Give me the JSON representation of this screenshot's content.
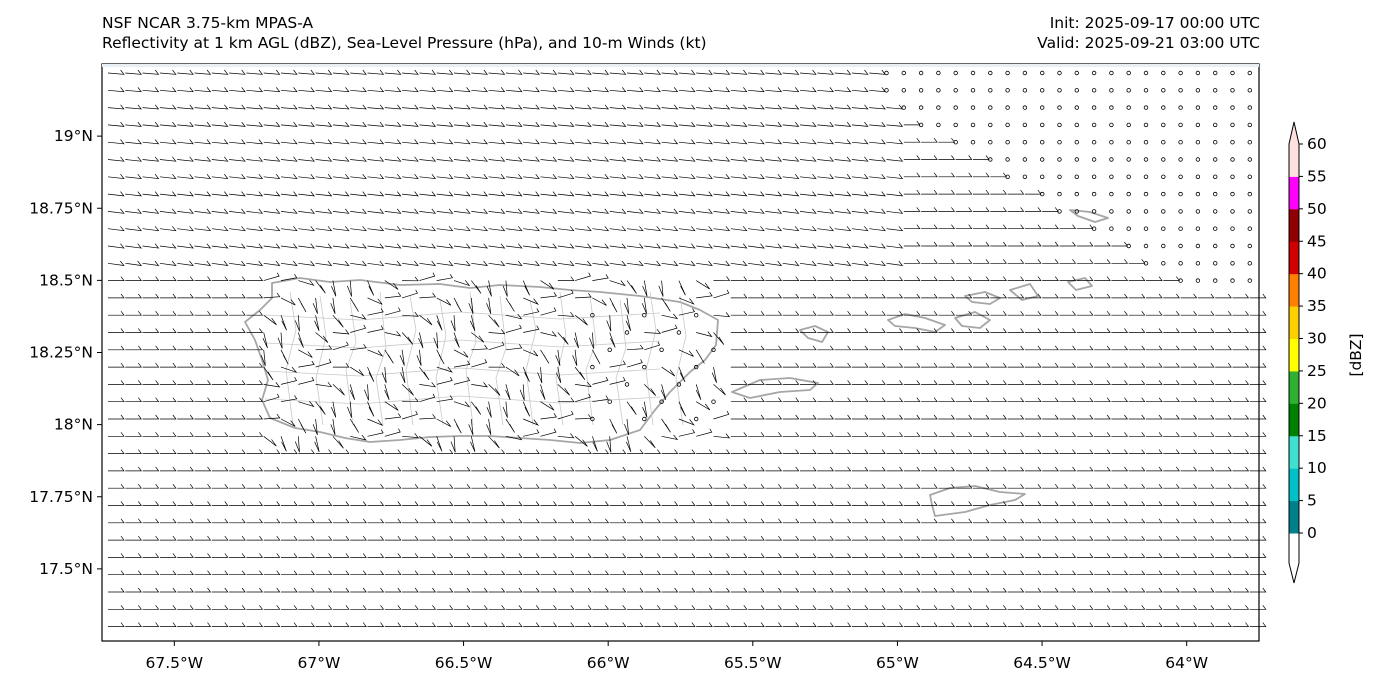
{
  "header": {
    "model": "NSF NCAR 3.75-km MPAS-A",
    "fields": "Reflectivity at 1 km AGL (dBZ), Sea-Level Pressure (hPa), and 10-m Winds (kt)",
    "init": "Init: 2025-09-17 00:00 UTC",
    "valid": "Valid: 2025-09-21 03:00 UTC"
  },
  "map": {
    "lon_range": [
      -67.75,
      -63.75
    ],
    "lat_range": [
      17.25,
      19.25
    ],
    "lon_ticks": [
      {
        "value": -67.5,
        "label": "67.5°W"
      },
      {
        "value": -67.0,
        "label": "67°W"
      },
      {
        "value": -66.5,
        "label": "66.5°W"
      },
      {
        "value": -66.0,
        "label": "66°W"
      },
      {
        "value": -65.5,
        "label": "65.5°W"
      },
      {
        "value": -65.0,
        "label": "65°W"
      },
      {
        "value": -64.5,
        "label": "64.5°W"
      },
      {
        "value": -64.0,
        "label": "64°W"
      }
    ],
    "lat_ticks": [
      {
        "value": 19.0,
        "label": "19°N"
      },
      {
        "value": 18.75,
        "label": "18.75°N"
      },
      {
        "value": 18.5,
        "label": "18.5°N"
      },
      {
        "value": 18.25,
        "label": "18.25°N"
      },
      {
        "value": 18.0,
        "label": "18°N"
      },
      {
        "value": 17.75,
        "label": "17.75°N"
      },
      {
        "value": 17.5,
        "label": "17.5°N"
      }
    ],
    "coastline_color": "#a6a6a6",
    "ocean_tint": "#e8f0f6"
  },
  "colorbar": {
    "label": "[dBZ]",
    "levels": [
      0,
      5,
      10,
      15,
      20,
      25,
      30,
      35,
      40,
      45,
      50,
      55,
      60
    ],
    "colors": [
      "#00808a",
      "#00c0c8",
      "#40e0d0",
      "#008000",
      "#30b030",
      "#ffff00",
      "#ffd000",
      "#ff8000",
      "#d00000",
      "#900000",
      "#ff00ff",
      "#ffe0e0"
    ],
    "tick_labels": [
      "0",
      "5",
      "10",
      "15",
      "20",
      "25",
      "30",
      "35",
      "40",
      "45",
      "50",
      "55",
      "60"
    ]
  }
}
